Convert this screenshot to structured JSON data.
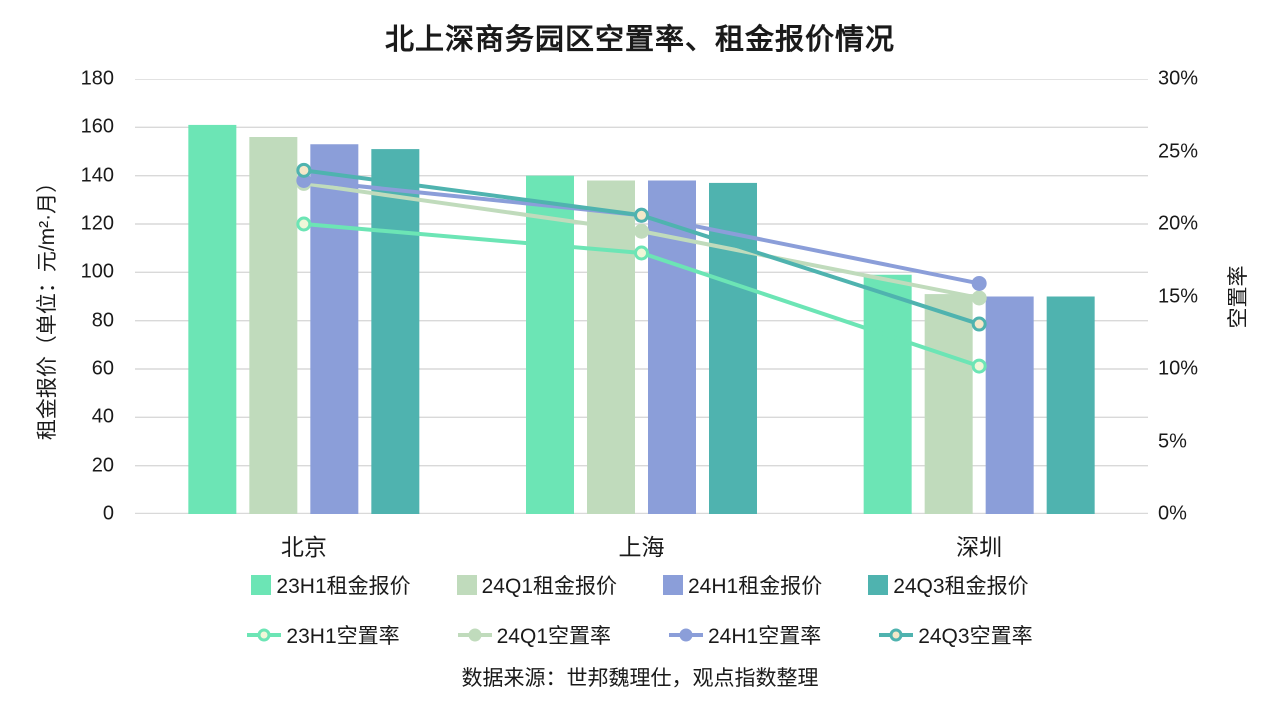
{
  "title": "北上深商务园区空置率、租金报价情况",
  "source_note": "数据来源：世邦魏理仕，观点指数整理",
  "colors": {
    "mint": "#6CE5B5",
    "sage": "#C0DBBC",
    "periwinkle": "#8B9ED9",
    "teal": "#4FB3AF",
    "gridline": "#D9D9D9",
    "hollow_marker_fill_mint": "#F0F7D8",
    "hollow_marker_fill_teal": "#F4E8C9"
  },
  "chart_data": {
    "type": "combo-bar-line",
    "categories": [
      "北京",
      "上海",
      "深圳"
    ],
    "left_axis": {
      "label": "租金报价（单位：元/m²·月）",
      "min": 0,
      "max": 180,
      "ticks": [
        "0",
        "20",
        "40",
        "60",
        "80",
        "100",
        "120",
        "140",
        "160",
        "180"
      ]
    },
    "right_axis": {
      "label": "空置率",
      "min_pct": 0,
      "max_pct": 30,
      "ticks": [
        "0%",
        "5%",
        "10%",
        "15%",
        "20%",
        "25%",
        "30%"
      ]
    },
    "grid": true,
    "legend_position": "bottom",
    "bar_series": [
      {
        "name": "23H1租金报价",
        "color": "#6CE5B5",
        "values": [
          161,
          140,
          99
        ]
      },
      {
        "name": "24Q1租金报价",
        "color": "#C0DBBC",
        "values": [
          156,
          138,
          91
        ]
      },
      {
        "name": "24H1租金报价",
        "color": "#8B9ED9",
        "values": [
          153,
          138,
          90
        ]
      },
      {
        "name": "24Q3租金报价",
        "color": "#4FB3AF",
        "values": [
          151,
          137,
          90
        ]
      }
    ],
    "line_series": [
      {
        "name": "23H1空置率",
        "color": "#6CE5B5",
        "marker": "hollow",
        "marker_fill": "#F0F7D8",
        "values_pct": [
          20.0,
          18.0,
          10.2
        ]
      },
      {
        "name": "24Q1空置率",
        "color": "#C0DBBC",
        "marker": "filled",
        "marker_fill": "#C0DBBC",
        "values_pct": [
          22.8,
          19.5,
          14.9
        ]
      },
      {
        "name": "24H1空置率",
        "color": "#8B9ED9",
        "marker": "filled",
        "marker_fill": "#8B9ED9",
        "values_pct": [
          23.0,
          20.6,
          15.9
        ]
      },
      {
        "name": "24Q3空置率",
        "color": "#4FB3AF",
        "marker": "hollow",
        "marker_fill": "#F4E8C9",
        "values_pct": [
          23.7,
          20.6,
          13.1
        ]
      }
    ]
  }
}
